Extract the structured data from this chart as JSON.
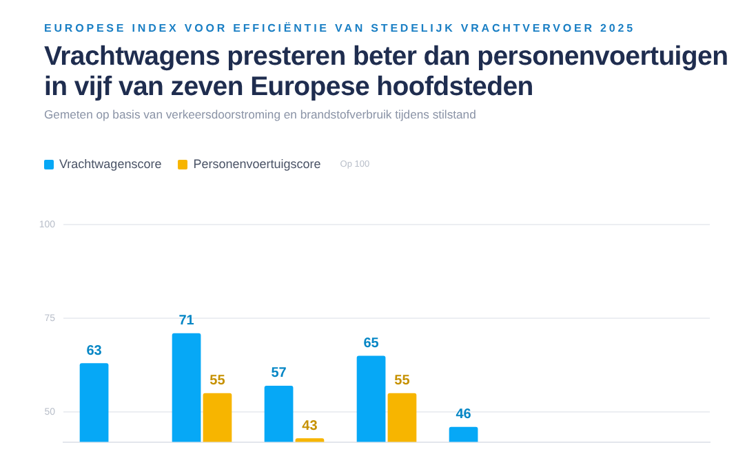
{
  "chart_data": {
    "type": "bar",
    "subtitle": "EUROPESE INDEX VOOR EFFICIËNTIE VAN STEDELIJK VRACHTVERVOER 2025",
    "title": "Vrachtwagens presteren beter dan personenvoertuigen in vijf van zeven Europese hoofdsteden",
    "annotations": [
      "Gemeten op basis van verkeersdoorstroming en brandstofverbruik tijdens stilstand",
      "Op 100"
    ],
    "categories": [
      null,
      null,
      null,
      null,
      null,
      null,
      null
    ],
    "series": [
      {
        "name": "Vrachtwagenscore",
        "color": "#06a8f6",
        "values": [
          63,
          71,
          57,
          65,
          46,
          null,
          null
        ]
      },
      {
        "name": "Personenvoertuigscore",
        "color": "#f7b500",
        "values": [
          null,
          55,
          43,
          55,
          null,
          null,
          null
        ]
      }
    ],
    "ylim": [
      42,
      100
    ],
    "yticks": [
      50,
      75,
      100
    ],
    "grid": "y",
    "legend": "top left",
    "tick_labels": "y",
    "data_labels": true
  }
}
